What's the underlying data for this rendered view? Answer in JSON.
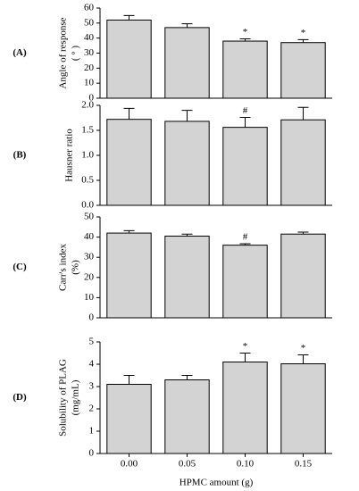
{
  "chart_data": [
    {
      "type": "bar",
      "panel": "(A)",
      "ylabel": [
        "Angle of response",
        "( ° )"
      ],
      "color": "#d3d3d3",
      "values": [
        52,
        47,
        38,
        37
      ],
      "errors": [
        3,
        2.5,
        1.5,
        2
      ],
      "markers": [
        null,
        null,
        "*",
        "*"
      ],
      "ylim": [
        0,
        60
      ],
      "yticks": [
        0,
        10,
        20,
        30,
        40,
        50,
        60
      ]
    },
    {
      "type": "bar",
      "panel": "(B)",
      "ylabel": [
        "Hausner ratio"
      ],
      "color": "#d3d3d3",
      "values": [
        1.72,
        1.68,
        1.56,
        1.71
      ],
      "errors": [
        0.22,
        0.22,
        0.2,
        0.25
      ],
      "markers": [
        null,
        null,
        "#",
        null
      ],
      "ylim": [
        0,
        2
      ],
      "yticks": [
        {
          "value": 0,
          "label": "0.0"
        },
        0.5,
        {
          "value": 1,
          "label": "1.0"
        },
        1.5,
        {
          "value": 2,
          "label": "2.0"
        }
      ]
    },
    {
      "type": "bar",
      "panel": "(C)",
      "ylabel": [
        "Carr's index",
        "(%)"
      ],
      "color": "#d3d3d3",
      "values": [
        42,
        40.5,
        36,
        41.5
      ],
      "errors": [
        1.2,
        1,
        0.7,
        1
      ],
      "markers": [
        null,
        null,
        "#",
        null
      ],
      "ylim": [
        0,
        50
      ],
      "yticks": [
        0,
        10,
        20,
        30,
        40,
        50
      ]
    },
    {
      "type": "bar",
      "panel": "(D)",
      "ylabel": [
        "Solubility of PLAG",
        "(mg/mL)"
      ],
      "color": "#d3d3d3",
      "categories": [
        "0.00",
        "0.05",
        "0.10",
        "0.15"
      ],
      "xlabel": "HPMC amount (g)",
      "values": [
        3.1,
        3.3,
        4.1,
        4.02
      ],
      "errors": [
        0.4,
        0.2,
        0.4,
        0.4
      ],
      "markers": [
        null,
        null,
        "*",
        "*"
      ],
      "ylim": [
        0,
        5
      ],
      "yticks": [
        0,
        1,
        2,
        3,
        4,
        5
      ]
    }
  ]
}
